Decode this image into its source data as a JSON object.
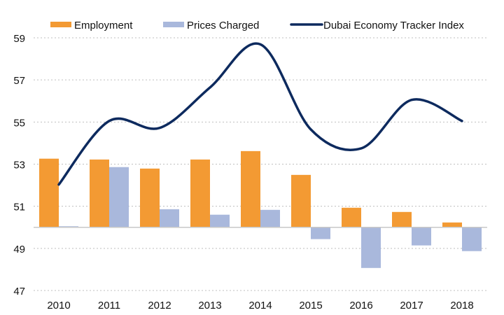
{
  "chart_data": {
    "type": "bar",
    "title": "",
    "xlabel": "",
    "ylabel": "",
    "categories": [
      "2010",
      "2011",
      "2012",
      "2013",
      "2014",
      "2015",
      "2016",
      "2017",
      "2018"
    ],
    "ylim": [
      47,
      59
    ],
    "yticks": [
      "47",
      "49",
      "51",
      "53",
      "55",
      "57",
      "59"
    ],
    "baseline": 50,
    "grid": true,
    "legend_position": "top",
    "series": [
      {
        "name": "Employment",
        "kind": "bar",
        "color": "#F39A33",
        "values": [
          53.26,
          53.22,
          52.79,
          53.22,
          53.62,
          52.49,
          50.93,
          50.73,
          50.23
        ]
      },
      {
        "name": "Prices Charged",
        "kind": "bar",
        "color": "#A9B8DC",
        "values": [
          50.05,
          52.86,
          50.86,
          50.6,
          50.83,
          49.44,
          48.07,
          49.14,
          48.87
        ]
      },
      {
        "name": "Dubai Economy Tracker Index",
        "kind": "line",
        "color": "#0D2A5E",
        "values": [
          52.03,
          55.05,
          54.72,
          56.64,
          58.69,
          54.65,
          53.75,
          56.05,
          55.05
        ]
      }
    ]
  }
}
